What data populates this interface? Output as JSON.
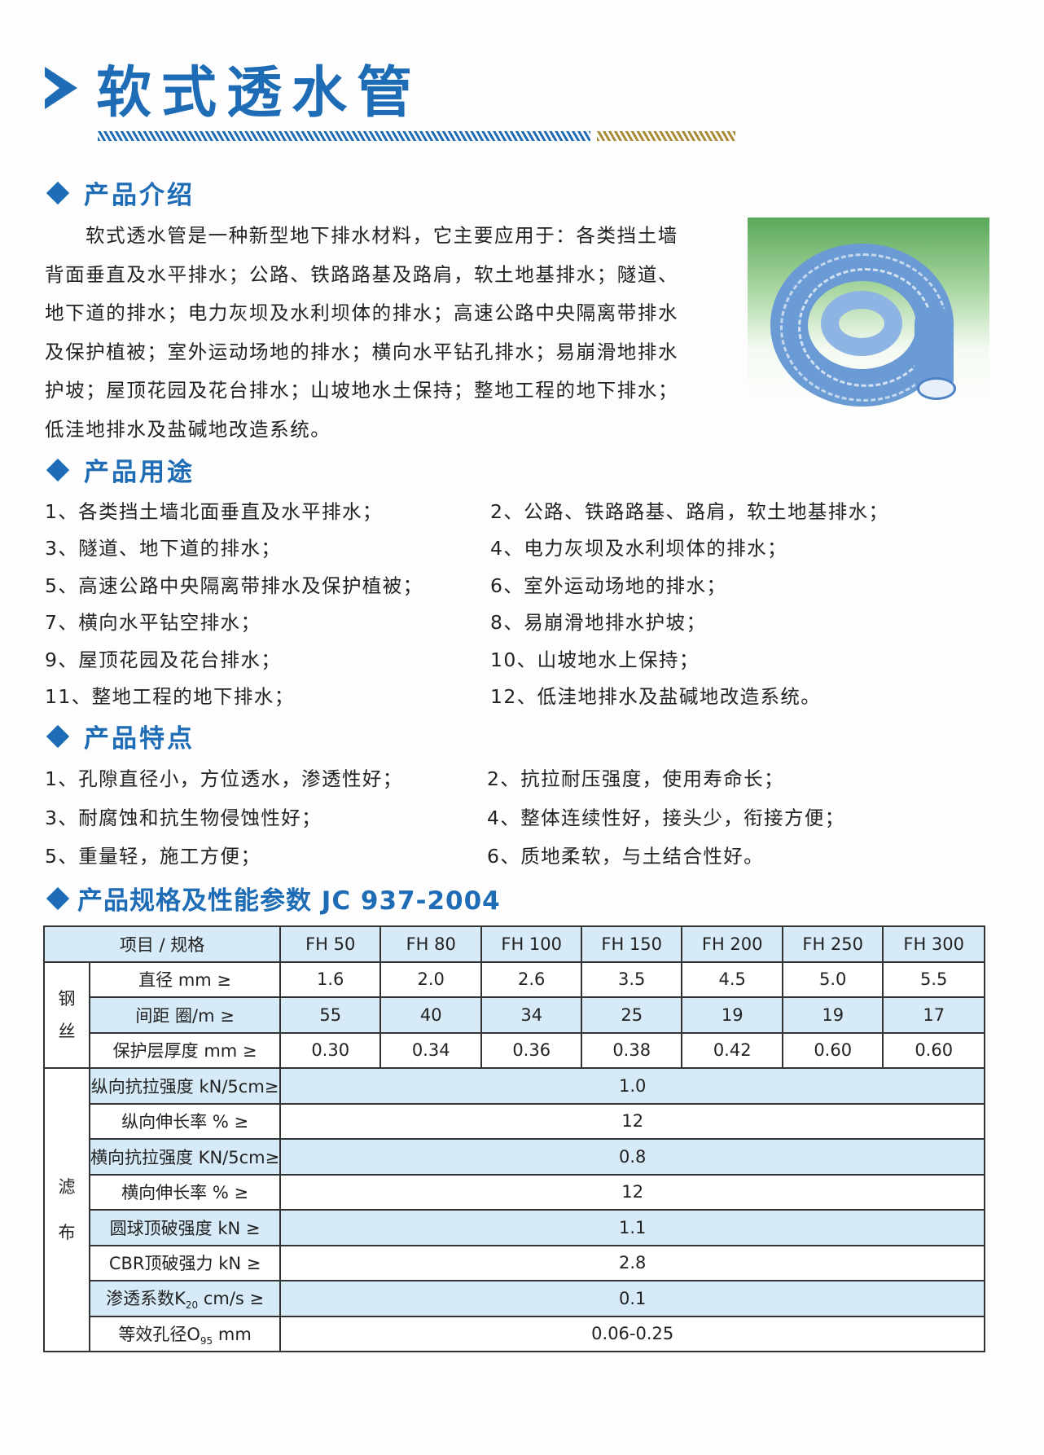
{
  "title": "软式透水管",
  "colors": {
    "accent": "#1d6cb5",
    "stripe_gold": "#a98a35",
    "table_row_blue": "#d6eaf8"
  },
  "intro": {
    "heading": "产品介绍",
    "lines": [
      "软式透水管是一种新型地下排水材料，它主要应用于：各类挡土墙",
      "背面垂直及水平排水；公路、铁路路基及路肩，软土地基排水；隧道、",
      "地下道的排水；电力灰坝及水利坝体的排水；高速公路中央隔离带排水",
      "及保护植被；室外运动场地的排水；横向水平钻孔排水；易崩滑地排水",
      "护坡；屋顶花园及花台排水；山坡地水土保持；整地工程的地下排水；",
      "低洼地排水及盐碱地改造系统。"
    ],
    "image": "coiled-drainage-pipe-photo"
  },
  "uses": {
    "heading": "产品用途",
    "items": [
      "1、各类挡土墙北面垂直及水平排水；",
      "2、公路、铁路路基、路肩，软土地基排水；",
      "3、隧道、地下道的排水；",
      "4、电力灰坝及水利坝体的排水；",
      "5、高速公路中央隔离带排水及保护植被；",
      "6、室外运动场地的排水；",
      "7、横向水平钻空排水；",
      "8、易崩滑地排水护坡；",
      "9、屋顶花园及花台排水；",
      "10、山坡地水上保持；",
      "11、整地工程的地下排水；",
      "12、低洼地排水及盐碱地改造系统。"
    ]
  },
  "features": {
    "heading": "产品特点",
    "items": [
      "1、孔隙直径小，方位透水，渗透性好；",
      "2、抗拉耐压强度，使用寿命长；",
      "3、耐腐蚀和抗生物侵蚀性好；",
      "4、整体连续性好，接头少，衔接方便；",
      "5、重量轻，施工方便；",
      "6、质地柔软，与土结合性好。"
    ]
  },
  "specs": {
    "heading": "产品规格及性能参数 JC 937-2004",
    "header_label": "项目 / 规格",
    "models": [
      "FH 50",
      "FH 80",
      "FH 100",
      "FH 150",
      "FH 200",
      "FH 250",
      "FH 300"
    ],
    "steel_group": [
      "钢",
      "丝"
    ],
    "steel_rows": [
      {
        "label": "直径 mm ≥",
        "values": [
          "1.6",
          "2.0",
          "2.6",
          "3.5",
          "4.5",
          "5.0",
          "5.5"
        ]
      },
      {
        "label": "间距 圈/m ≥",
        "values": [
          "55",
          "40",
          "34",
          "25",
          "19",
          "19",
          "17"
        ]
      },
      {
        "label": "保护层厚度 mm ≥",
        "values": [
          "0.30",
          "0.34",
          "0.36",
          "0.38",
          "0.42",
          "0.60",
          "0.60"
        ]
      }
    ],
    "filter_group": [
      "滤",
      "布"
    ],
    "filter_rows": [
      {
        "label": "纵向抗拉强度 kN/5cm≥",
        "value": "1.0"
      },
      {
        "label": "纵向伸长率 % ≥",
        "value": "12"
      },
      {
        "label": "横向抗拉强度 KN/5cm≥",
        "value": "0.8"
      },
      {
        "label": "横向伸长率 % ≥",
        "value": "12"
      },
      {
        "label": "圆球顶破强度 kN ≥",
        "value": "1.1"
      },
      {
        "label": "CBR顶破强力 kN ≥",
        "value": "2.8"
      },
      {
        "label_pre": "渗透系数K",
        "label_sub": "20",
        "label_post": " cm/s ≥",
        "value": "0.1"
      },
      {
        "label_pre": "等效孔径O",
        "label_sub": "95",
        "label_post": " mm",
        "value": "0.06-0.25"
      }
    ]
  }
}
